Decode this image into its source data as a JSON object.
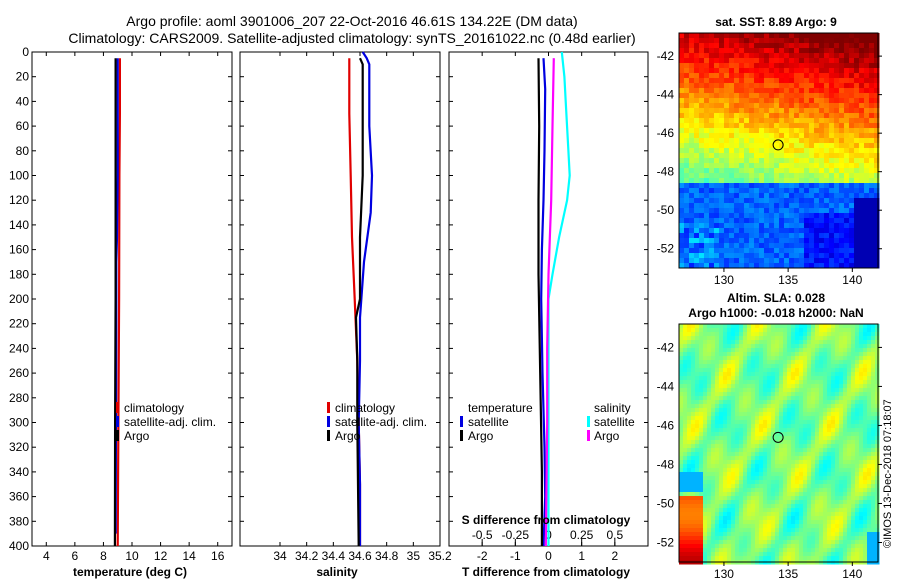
{
  "title": {
    "line1": "Argo profile: aoml 3901006_207 22-Oct-2016 46.61S 134.22E (DM data)",
    "line2": "Climatology: CARS2009. Satellite-adjusted climatology: synTS_20161022.nc (0.48d earlier)"
  },
  "watermark": "©IMOS 13-Dec-2018 07:18:07",
  "colors": {
    "climatology": "#e00000",
    "satellite": "#0000e0",
    "argo": "#000000",
    "sat_s": "#00ffff",
    "argo_s": "#ff00ff"
  },
  "chart_data": [
    {
      "type": "line",
      "id": "temperature",
      "xlabel": "temperature (deg C)",
      "ylabel": "",
      "xlim": [
        3,
        17
      ],
      "ylim": [
        400,
        0
      ],
      "xticks": [
        4,
        6,
        8,
        10,
        12,
        14,
        16
      ],
      "xtick_labels": [
        "4",
        "6",
        "8",
        "10",
        "12",
        "14",
        "16"
      ],
      "yticks": [
        0,
        20,
        40,
        60,
        80,
        100,
        120,
        140,
        160,
        180,
        200,
        220,
        240,
        260,
        280,
        300,
        320,
        340,
        360,
        380,
        400
      ],
      "ytick_labels": [
        "0",
        "20",
        "40",
        "60",
        "80",
        "100",
        "120",
        "140",
        "160",
        "180",
        "200",
        "220",
        "240",
        "260",
        "280",
        "300",
        "320",
        "340",
        "360",
        "380",
        "400"
      ],
      "legend": [
        "climatology",
        "satellite-adj. clim.",
        "Argo"
      ],
      "series": [
        {
          "name": "climatology",
          "color_key": "climatology",
          "depth": [
            5,
            50,
            100,
            200,
            300,
            400
          ],
          "values": [
            9.15,
            9.15,
            9.12,
            9.1,
            9.05,
            9.0
          ]
        },
        {
          "name": "satellite-adj. clim.",
          "color_key": "satellite",
          "depth": [
            5,
            50,
            100,
            150,
            170,
            200,
            300,
            390
          ],
          "values": [
            9.0,
            9.0,
            9.0,
            8.95,
            8.9,
            8.9,
            8.88,
            8.85
          ]
        },
        {
          "name": "Argo",
          "color_key": "argo",
          "depth": [
            5,
            50,
            100,
            150,
            200,
            300,
            400
          ],
          "values": [
            8.85,
            8.85,
            8.85,
            8.85,
            8.85,
            8.82,
            8.8
          ]
        }
      ]
    },
    {
      "type": "line",
      "id": "salinity",
      "xlabel": "salinity",
      "xlim": [
        33.7,
        35.2
      ],
      "ylim": [
        400,
        0
      ],
      "xticks": [
        34,
        34.2,
        34.4,
        34.6,
        34.8,
        35,
        35.2
      ],
      "xtick_labels": [
        "34",
        "34.2",
        "34.4",
        "34.6",
        "34.8",
        "35",
        "35.2"
      ],
      "legend": [
        "climatology",
        "satellite-adj. clim.",
        "Argo"
      ],
      "series": [
        {
          "name": "climatology",
          "color_key": "climatology",
          "depth": [
            5,
            50,
            100,
            150,
            200,
            250,
            300,
            350,
            400
          ],
          "values": [
            34.52,
            34.52,
            34.53,
            34.54,
            34.56,
            34.58,
            34.59,
            34.6,
            34.6
          ]
        },
        {
          "name": "satellite-adj. clim.",
          "color_key": "satellite",
          "depth": [
            0,
            5,
            10,
            60,
            100,
            130,
            170,
            215,
            250,
            300,
            350,
            400
          ],
          "values": [
            34.62,
            34.65,
            34.67,
            34.67,
            34.69,
            34.68,
            34.63,
            34.6,
            34.6,
            34.59,
            34.6,
            34.6
          ]
        },
        {
          "name": "Argo",
          "color_key": "argo",
          "depth": [
            5,
            10,
            60,
            100,
            150,
            200,
            215,
            250,
            300,
            400
          ],
          "values": [
            34.6,
            34.62,
            34.62,
            34.62,
            34.6,
            34.6,
            34.57,
            34.58,
            34.58,
            34.59
          ]
        }
      ]
    },
    {
      "type": "line",
      "id": "difference",
      "xlabel": "T difference from climatology",
      "xlim": [
        -3,
        3
      ],
      "ylim": [
        400,
        0
      ],
      "xticks": [
        -2,
        -1,
        0,
        1,
        2
      ],
      "xtick_labels": [
        "-2",
        "-1",
        "0",
        "1",
        "2"
      ],
      "secondary_axis": {
        "label": "S difference from climatology",
        "ticks": [
          -0.5,
          -0.25,
          0,
          0.25,
          0.5
        ],
        "tick_labels": [
          "-0.5",
          "-0.25",
          "0",
          "0.25",
          "0.5"
        ]
      },
      "legend_headers": [
        "temperature",
        "salinity"
      ],
      "legend": [
        "satellite",
        "Argo",
        "satellite",
        "Argo"
      ],
      "series": [
        {
          "name": "T satellite",
          "color_key": "satellite",
          "depth": [
            5,
            30,
            80,
            120,
            160,
            200,
            260,
            320,
            360,
            400
          ],
          "values": [
            -0.15,
            -0.1,
            -0.12,
            -0.15,
            -0.2,
            -0.22,
            -0.18,
            -0.12,
            -0.1,
            -0.15
          ]
        },
        {
          "name": "T Argo",
          "color_key": "argo",
          "depth": [
            5,
            60,
            120,
            180,
            260,
            340,
            400
          ],
          "values": [
            -0.3,
            -0.28,
            -0.3,
            -0.3,
            -0.25,
            -0.2,
            -0.2
          ]
        },
        {
          "name": "S satellite",
          "color_key": "sat_s",
          "depth": [
            0,
            20,
            40,
            80,
            100,
            120,
            150,
            180,
            200,
            300,
            400
          ],
          "values": [
            0.1,
            0.12,
            0.13,
            0.15,
            0.16,
            0.14,
            0.08,
            0.03,
            0.0,
            0.0,
            0.0
          ]
        },
        {
          "name": "S Argo",
          "color_key": "argo_s",
          "depth": [
            5,
            60,
            120,
            180,
            240,
            300,
            400
          ],
          "values": [
            0.04,
            0.03,
            0.02,
            0.0,
            -0.01,
            -0.01,
            -0.02
          ]
        }
      ]
    },
    {
      "type": "heatmap",
      "id": "sst_map",
      "title": "sat. SST: 8.89 Argo: 9",
      "xlim": [
        126.5,
        142
      ],
      "ylim": [
        -53,
        -40.8
      ],
      "xticks": [
        130,
        135,
        140
      ],
      "xtick_labels": [
        "130",
        "135",
        "140"
      ],
      "yticks": [
        -42,
        -44,
        -46,
        -48,
        -50,
        -52
      ],
      "ytick_labels": [
        "-42",
        "-44",
        "-46",
        "-48",
        "-50",
        "-52"
      ],
      "marker": {
        "lon": 134.22,
        "lat": -46.61
      }
    },
    {
      "type": "heatmap",
      "id": "sla_map",
      "title": "Altim. SLA: 0.028",
      "subtitle": "Argo h1000: -0.018 h2000: NaN",
      "xlim": [
        126.5,
        142
      ],
      "ylim": [
        -53,
        -40.8
      ],
      "xticks": [
        130,
        135,
        140
      ],
      "xtick_labels": [
        "130",
        "135",
        "140"
      ],
      "yticks": [
        -42,
        -44,
        -46,
        -48,
        -50,
        -52
      ],
      "ytick_labels": [
        "-42",
        "-44",
        "-46",
        "-48",
        "-50",
        "-52"
      ],
      "marker": {
        "lon": 134.22,
        "lat": -46.61
      }
    }
  ]
}
